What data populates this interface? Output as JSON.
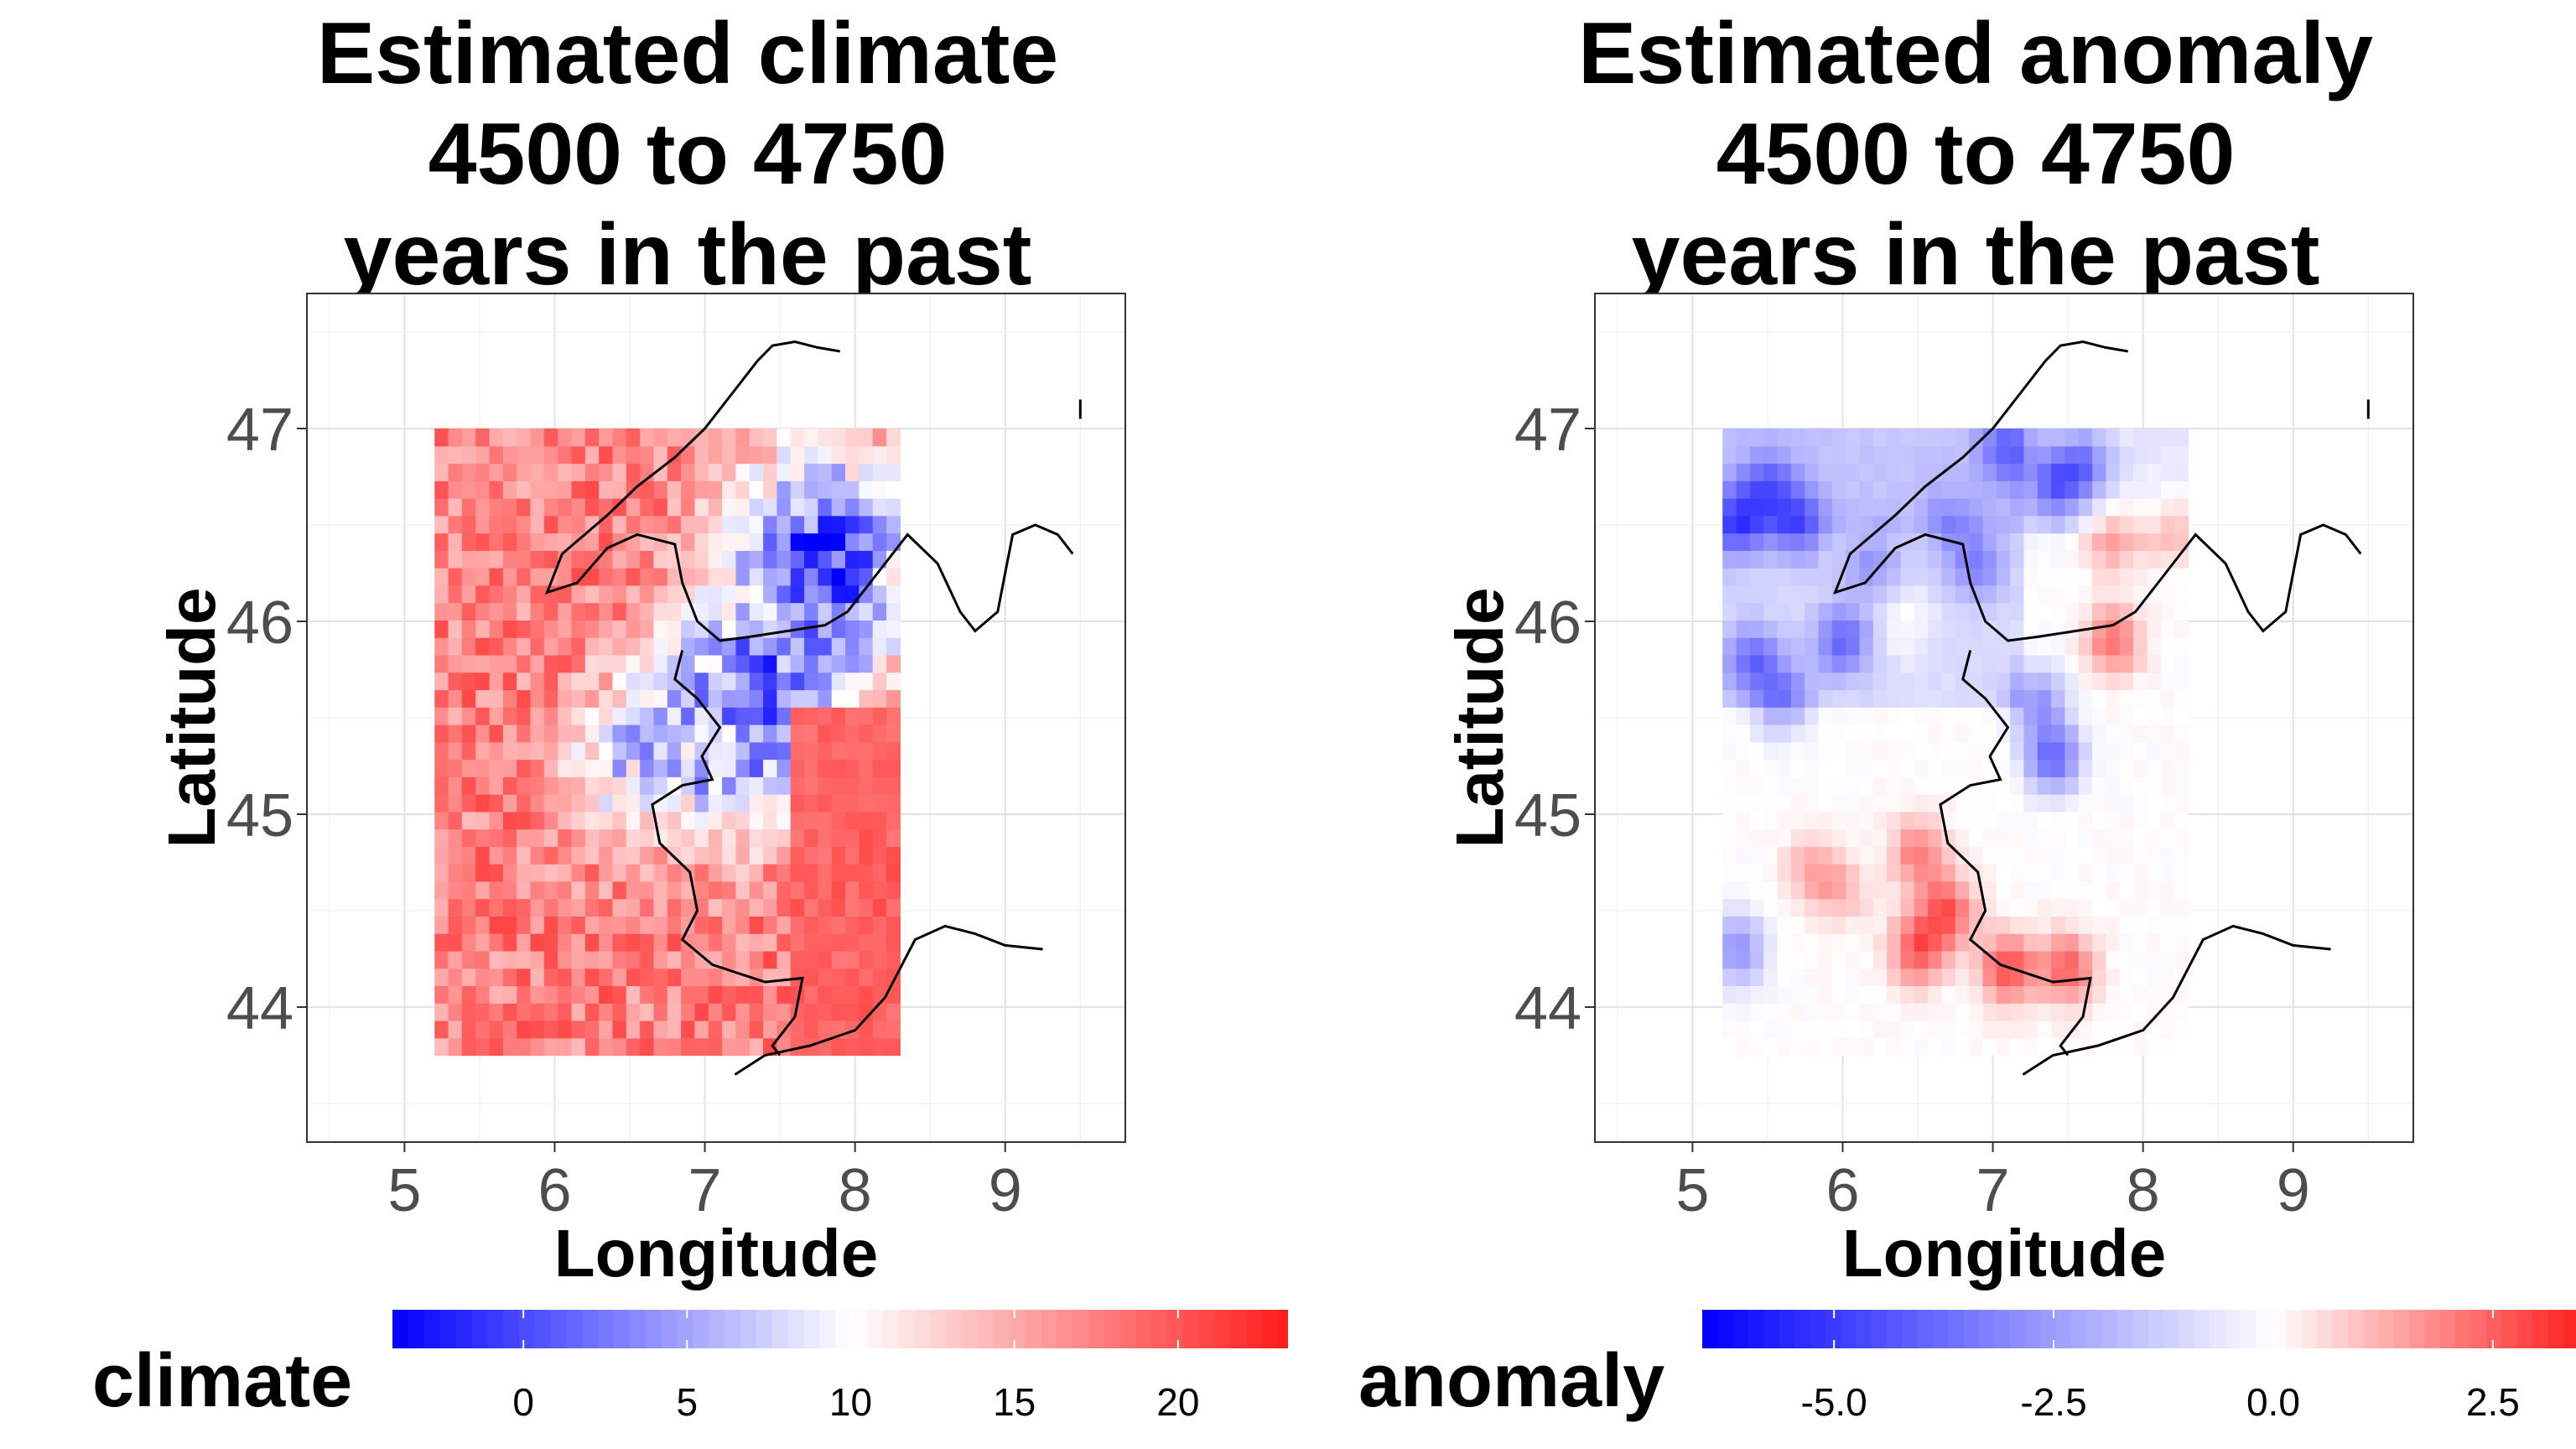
{
  "chart_data": [
    {
      "type": "heatmap",
      "title_lines": [
        "Estimated climate",
        "4500 to 4750",
        "years in the past"
      ],
      "xlabel": "Longitude",
      "ylabel": "Latitude",
      "xticks": [
        "5",
        "6",
        "7",
        "8",
        "9"
      ],
      "yticks": [
        "44",
        "45",
        "46",
        "47"
      ],
      "xlim": [
        4.35,
        9.8
      ],
      "ylim": [
        43.3,
        47.7
      ],
      "grid_extent": {
        "lon": [
          5.2,
          8.3
        ],
        "lat": [
          43.75,
          47.0
        ]
      },
      "legend": {
        "title": "climate",
        "position": "bottom",
        "range": [
          -4,
          25
        ],
        "ticks": [
          "0",
          "5",
          "10",
          "15",
          "20"
        ],
        "tick_values": [
          0,
          5,
          10,
          15,
          20
        ]
      },
      "colors": {
        "low": "#0000ff",
        "mid": "#ffffff",
        "high": "#ff0000",
        "midpoint": 10
      },
      "cold_zones": [
        {
          "lon": 7.8,
          "lat": 46.3,
          "value": -0.5,
          "spread": 0.6
        },
        {
          "lon": 7.4,
          "lat": 45.6,
          "value": 0.5,
          "spread": 0.5
        },
        {
          "lon": 7.0,
          "lat": 45.4,
          "value": 4.0,
          "spread": 0.5
        },
        {
          "lon": 6.5,
          "lat": 45.3,
          "value": 8.0,
          "spread": 0.4
        }
      ],
      "baseline_value": 17.5
    },
    {
      "type": "heatmap",
      "title_lines": [
        "Estimated anomaly",
        "4500 to 4750",
        "years in the past"
      ],
      "xlabel": "Longitude",
      "ylabel": "Latitude",
      "xticks": [
        "5",
        "6",
        "7",
        "8",
        "9"
      ],
      "yticks": [
        "44",
        "45",
        "46",
        "47"
      ],
      "xlim": [
        4.35,
        9.8
      ],
      "ylim": [
        43.3,
        47.7
      ],
      "grid_extent": {
        "lon": [
          5.2,
          8.3
        ],
        "lat": [
          43.75,
          47.0
        ]
      },
      "legend": {
        "title": "anomaly",
        "position": "bottom",
        "range": [
          -6.5,
          4
        ],
        "ticks": [
          "-5.0",
          "-2.5",
          "0.0",
          "2.5"
        ],
        "tick_values": [
          -5.0,
          -2.5,
          0.0,
          2.5
        ]
      },
      "colors": {
        "low": "#0000ff",
        "mid": "#ffffff",
        "high": "#ff0000",
        "midpoint": 0
      },
      "anomaly_spots": [
        {
          "lon": 5.5,
          "lat": 46.7,
          "value": -2.5
        },
        {
          "lon": 5.3,
          "lat": 46.5,
          "value": -3.5
        },
        {
          "lon": 5.7,
          "lat": 46.5,
          "value": -3.0
        },
        {
          "lon": 5.4,
          "lat": 45.8,
          "value": -2.8
        },
        {
          "lon": 5.6,
          "lat": 45.6,
          "value": -2.5
        },
        {
          "lon": 6.2,
          "lat": 46.3,
          "value": -1.8
        },
        {
          "lon": 6.0,
          "lat": 45.9,
          "value": -3.0
        },
        {
          "lon": 7.1,
          "lat": 46.9,
          "value": -2.6
        },
        {
          "lon": 7.4,
          "lat": 46.7,
          "value": -3.0
        },
        {
          "lon": 7.6,
          "lat": 46.8,
          "value": -2.8
        },
        {
          "lon": 6.9,
          "lat": 46.3,
          "value": -2.2
        },
        {
          "lon": 7.3,
          "lat": 45.6,
          "value": -2.5
        },
        {
          "lon": 7.4,
          "lat": 45.3,
          "value": -3.8
        },
        {
          "lon": 5.3,
          "lat": 44.3,
          "value": -2.8
        },
        {
          "lon": 6.7,
          "lat": 46.5,
          "value": -1.5
        },
        {
          "lon": 7.8,
          "lat": 46.45,
          "value": 1.6
        },
        {
          "lon": 8.2,
          "lat": 46.5,
          "value": 1.4
        },
        {
          "lon": 7.8,
          "lat": 45.9,
          "value": 2.2
        },
        {
          "lon": 6.4,
          "lat": 46.0,
          "value": 0.9
        },
        {
          "lon": 5.8,
          "lat": 44.7,
          "value": 1.3
        },
        {
          "lon": 6.5,
          "lat": 44.8,
          "value": 2.0
        },
        {
          "lon": 6.7,
          "lat": 44.5,
          "value": 2.5
        },
        {
          "lon": 6.5,
          "lat": 44.3,
          "value": 2.6
        },
        {
          "lon": 7.1,
          "lat": 44.2,
          "value": 2.8
        },
        {
          "lon": 7.5,
          "lat": 44.2,
          "value": 2.5
        },
        {
          "lon": 6.0,
          "lat": 44.6,
          "value": 1.0
        }
      ]
    }
  ]
}
